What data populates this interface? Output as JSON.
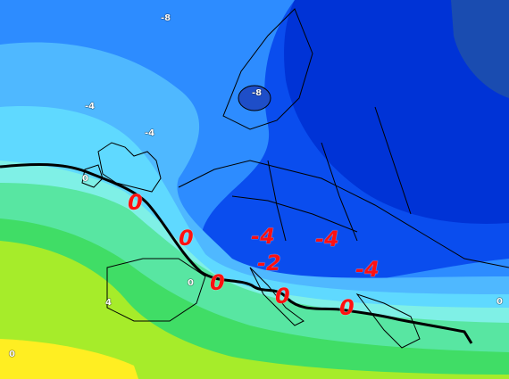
{
  "map": {
    "isolines": [
      {
        "id": "iso-1",
        "text": "-8"
      },
      {
        "id": "iso-2",
        "text": "-8"
      },
      {
        "id": "iso-3",
        "text": "-4"
      },
      {
        "id": "iso-4",
        "text": "-4"
      },
      {
        "id": "iso-5",
        "text": "0"
      },
      {
        "id": "iso-6",
        "text": "0"
      },
      {
        "id": "iso-7",
        "text": "4"
      },
      {
        "id": "iso-8",
        "text": "0"
      },
      {
        "id": "iso-9",
        "text": "0"
      }
    ],
    "annotations": [
      {
        "id": "ann-1",
        "text": "0"
      },
      {
        "id": "ann-2",
        "text": "0"
      },
      {
        "id": "ann-3",
        "text": "-4"
      },
      {
        "id": "ann-4",
        "text": "-4"
      },
      {
        "id": "ann-5",
        "text": "-2"
      },
      {
        "id": "ann-6",
        "text": "-4"
      },
      {
        "id": "ann-7",
        "text": "0"
      },
      {
        "id": "ann-8",
        "text": "0"
      },
      {
        "id": "ann-9",
        "text": "0"
      }
    ],
    "colors": {
      "deep_blue": "#0033d6",
      "blue": "#0a4dee",
      "mid_blue": "#2d8cff",
      "light_blue": "#4fb8ff",
      "cyan": "#5fd9ff",
      "aqua": "#7ff0e6",
      "green_light": "#58e6a2",
      "green": "#40dd66",
      "yellow_green": "#a6ec2a",
      "yellow": "#ffee22",
      "annotation_red": "#ff1010",
      "zero_line": "#000000"
    }
  }
}
